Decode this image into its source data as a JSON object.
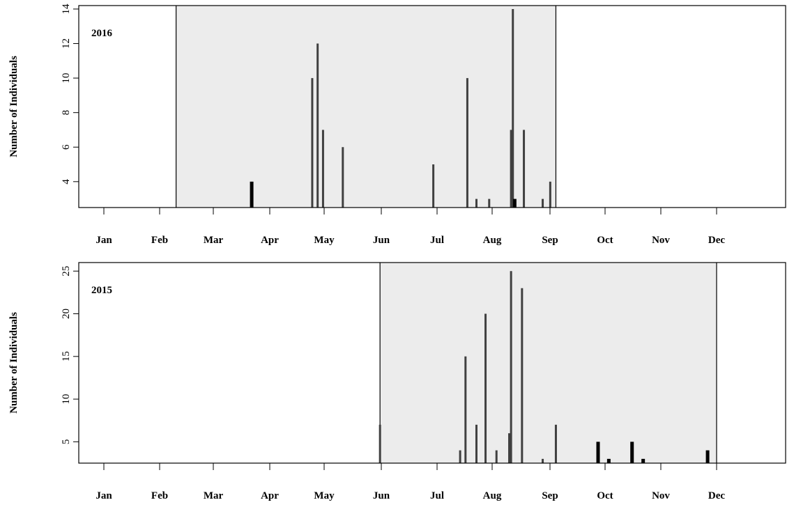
{
  "chart_data": [
    {
      "type": "bar",
      "year_label": "2016",
      "ylabel": "Number of Individuals",
      "xlabel": "",
      "month_labels": [
        "Jan",
        "Feb",
        "Mar",
        "Apr",
        "May",
        "Jun",
        "Jul",
        "Aug",
        "Sep",
        "Oct",
        "Nov",
        "Dec"
      ],
      "yticks": [
        4,
        6,
        8,
        10,
        12,
        14
      ],
      "ylim": [
        2.5,
        14.2
      ],
      "xlim_days": [
        1,
        366
      ],
      "shaded_period": [
        "2016-02-24",
        "2016-09-19"
      ],
      "grid": false,
      "legend": "none",
      "series": [
        {
          "values": [
            {
              "date": "2016-04-06",
              "value": 4,
              "style": "thick"
            },
            {
              "date": "2016-05-09",
              "value": 10,
              "style": "thin"
            },
            {
              "date": "2016-05-12",
              "value": 12,
              "style": "thin"
            },
            {
              "date": "2016-05-15",
              "value": 7,
              "style": "thin"
            },
            {
              "date": "2016-05-26",
              "value": 6,
              "style": "thin"
            },
            {
              "date": "2016-07-14",
              "value": 5,
              "style": "thin"
            },
            {
              "date": "2016-08-02",
              "value": 10,
              "style": "thin"
            },
            {
              "date": "2016-08-07",
              "value": 3,
              "style": "thin"
            },
            {
              "date": "2016-08-14",
              "value": 3,
              "style": "thin"
            },
            {
              "date": "2016-08-26",
              "value": 7,
              "style": "thin"
            },
            {
              "date": "2016-08-27",
              "value": 14,
              "style": "thin"
            },
            {
              "date": "2016-08-28",
              "value": 3,
              "style": "thick"
            },
            {
              "date": "2016-09-02",
              "value": 7,
              "style": "thin"
            },
            {
              "date": "2016-09-12",
              "value": 3,
              "style": "thin"
            },
            {
              "date": "2016-09-16",
              "value": 4,
              "style": "thin"
            }
          ]
        }
      ]
    },
    {
      "type": "bar",
      "year_label": "2015",
      "ylabel": "Number of Individuals",
      "xlabel": "",
      "month_labels": [
        "Jan",
        "Feb",
        "Mar",
        "Apr",
        "May",
        "Jun",
        "Jul",
        "Aug",
        "Sep",
        "Oct",
        "Nov",
        "Dec"
      ],
      "yticks": [
        5,
        10,
        15,
        20,
        25
      ],
      "ylim": [
        2.5,
        26
      ],
      "xlim_days": [
        1,
        366
      ],
      "shaded_period": [
        "2015-06-15",
        "2015-12-16"
      ],
      "grid": false,
      "legend": "none",
      "series": [
        {
          "values": [
            {
              "date": "2015-06-15",
              "value": 7,
              "style": "thin"
            },
            {
              "date": "2015-07-29",
              "value": 4,
              "style": "thin"
            },
            {
              "date": "2015-08-01",
              "value": 15,
              "style": "thin"
            },
            {
              "date": "2015-08-07",
              "value": 7,
              "style": "thin"
            },
            {
              "date": "2015-08-12",
              "value": 20,
              "style": "thin"
            },
            {
              "date": "2015-08-18",
              "value": 4,
              "style": "thin"
            },
            {
              "date": "2015-08-25",
              "value": 6,
              "style": "thin"
            },
            {
              "date": "2015-08-26",
              "value": 25,
              "style": "thin"
            },
            {
              "date": "2015-09-01",
              "value": 23,
              "style": "thin"
            },
            {
              "date": "2015-09-12",
              "value": 3,
              "style": "thin"
            },
            {
              "date": "2015-09-19",
              "value": 7,
              "style": "thin"
            },
            {
              "date": "2015-10-12",
              "value": 5,
              "style": "thick"
            },
            {
              "date": "2015-10-18",
              "value": 3,
              "style": "thick"
            },
            {
              "date": "2015-10-31",
              "value": 5,
              "style": "thick"
            },
            {
              "date": "2015-11-06",
              "value": 3,
              "style": "thick"
            },
            {
              "date": "2015-12-11",
              "value": 4,
              "style": "thick"
            }
          ]
        }
      ]
    }
  ]
}
